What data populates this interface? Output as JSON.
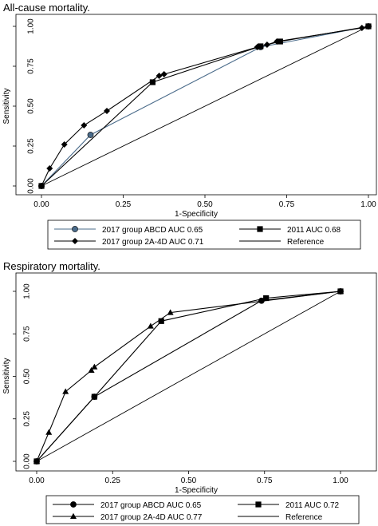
{
  "charts": [
    {
      "panel_title": "All-cause mortality.",
      "legend": [
        {
          "label": "2017 group ABCD AUC  0.65",
          "marker": "circle",
          "color": "#4a6b8a"
        },
        {
          "label": "2011 AUC  0.68",
          "marker": "square",
          "color": "#000000"
        },
        {
          "label": "2017 group 2A-4D AUC 0.71",
          "marker": "diamond",
          "color": "#000000"
        },
        {
          "label": "Reference",
          "marker": "none",
          "color": "#000000"
        }
      ]
    },
    {
      "panel_title": "Respiratory mortality.",
      "legend": [
        {
          "label": "2017 group ABCD AUC 0.65",
          "marker": "circle",
          "color": "#000000"
        },
        {
          "label": "2011 AUC  0.72",
          "marker": "square",
          "color": "#000000"
        },
        {
          "label": "2017 group 2A-4D AUC 0.77",
          "marker": "triangle",
          "color": "#000000"
        },
        {
          "label": "Reference",
          "marker": "none",
          "color": "#000000"
        }
      ]
    }
  ],
  "chart_data": [
    {
      "type": "line",
      "title": "All-cause mortality.",
      "xlabel": "1-Specificity",
      "ylabel": "Sensitivity",
      "xlim": [
        0,
        1
      ],
      "ylim": [
        0,
        1
      ],
      "xticks": [
        "0.00",
        "0.25",
        "0.50",
        "0.75",
        "1.00"
      ],
      "yticks": [
        "0.00",
        "0.25",
        "0.50",
        "0.75",
        "1.00"
      ],
      "grid": false,
      "legend_position": "bottom",
      "series": [
        {
          "name": "2017 group ABCD AUC  0.65",
          "marker": "circle",
          "color": "#4a6b8a",
          "x": [
            0,
            0.15,
            0.67,
            1.0
          ],
          "y": [
            0,
            0.32,
            0.87,
            1.0
          ]
        },
        {
          "name": "2011 AUC  0.68",
          "marker": "square",
          "color": "#000000",
          "x": [
            0,
            0.34,
            0.67,
            0.73,
            1.0
          ],
          "y": [
            0,
            0.65,
            0.875,
            0.905,
            1.0
          ]
        },
        {
          "name": "2017 group 2A-4D AUC 0.71",
          "marker": "diamond",
          "color": "#000000",
          "x": [
            0,
            0.025,
            0.07,
            0.13,
            0.2,
            0.36,
            0.375,
            0.66,
            0.69,
            0.72,
            0.98,
            1.0
          ],
          "y": [
            0,
            0.11,
            0.26,
            0.38,
            0.47,
            0.69,
            0.7,
            0.87,
            0.885,
            0.905,
            0.99,
            1.0
          ]
        },
        {
          "name": "Reference",
          "marker": "none",
          "color": "#000000",
          "x": [
            0,
            1
          ],
          "y": [
            0,
            1
          ]
        }
      ]
    },
    {
      "type": "line",
      "title": "Respiratory mortality.",
      "xlabel": "1-Specificity",
      "ylabel": "Sensitivity",
      "xlim": [
        0,
        1
      ],
      "ylim": [
        0,
        1
      ],
      "xticks": [
        "0.00",
        "0.25",
        "0.50",
        "0.75",
        "1.00"
      ],
      "yticks": [
        "0.00",
        "0.25",
        "0.50",
        "0.75",
        "1.00"
      ],
      "grid": false,
      "legend_position": "bottom",
      "series": [
        {
          "name": "2017 group ABCD AUC 0.65",
          "marker": "circle",
          "color": "#000000",
          "x": [
            0,
            0.19,
            0.74,
            1.0
          ],
          "y": [
            0,
            0.38,
            0.945,
            1.0
          ]
        },
        {
          "name": "2011 AUC  0.72",
          "marker": "square",
          "color": "#000000",
          "x": [
            0,
            0.19,
            0.41,
            0.755,
            1.0
          ],
          "y": [
            0,
            0.38,
            0.825,
            0.96,
            1.0
          ]
        },
        {
          "name": "2017 group 2A-4D AUC 0.77",
          "marker": "triangle",
          "color": "#000000",
          "x": [
            0,
            0.04,
            0.095,
            0.18,
            0.19,
            0.375,
            0.44,
            1.0
          ],
          "y": [
            0,
            0.17,
            0.41,
            0.535,
            0.555,
            0.795,
            0.875,
            1.0
          ]
        },
        {
          "name": "Reference",
          "marker": "none",
          "color": "#000000",
          "x": [
            0,
            1
          ],
          "y": [
            0,
            1
          ]
        }
      ]
    }
  ]
}
